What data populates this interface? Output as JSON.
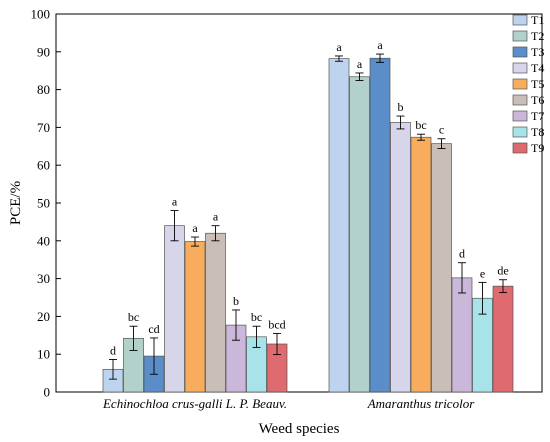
{
  "chart_data": {
    "type": "bar",
    "title": "",
    "xlabel": "Weed species",
    "ylabel": "PCE/%",
    "ylim": [
      0,
      100
    ],
    "yticks": [
      0,
      10,
      20,
      30,
      40,
      50,
      60,
      70,
      80,
      90,
      100
    ],
    "categories": [
      "Echinochloa crus-galli L. P. Beauv.",
      "Amaranthus tricolor"
    ],
    "legend_position": "top-right",
    "grid": false,
    "series": [
      {
        "name": "T1",
        "color": "#bdd3ee",
        "values": [
          6.0,
          88.2
        ],
        "errors": [
          2.6,
          0.7
        ],
        "labels": [
          "d",
          "a"
        ]
      },
      {
        "name": "T2",
        "color": "#b3d1cb",
        "values": [
          14.2,
          83.4
        ],
        "errors": [
          3.2,
          1.0
        ],
        "labels": [
          "bc",
          "a"
        ]
      },
      {
        "name": "T3",
        "color": "#5b8dc8",
        "values": [
          9.5,
          88.3
        ],
        "errors": [
          4.8,
          1.1
        ],
        "labels": [
          "cd",
          "a"
        ]
      },
      {
        "name": "T4",
        "color": "#d6d5ea",
        "values": [
          44.0,
          71.3
        ],
        "errors": [
          4.0,
          1.7
        ],
        "labels": [
          "a",
          "b"
        ]
      },
      {
        "name": "T5",
        "color": "#f8ad5e",
        "values": [
          39.8,
          67.4
        ],
        "errors": [
          1.2,
          0.8
        ],
        "labels": [
          "a",
          "bc"
        ]
      },
      {
        "name": "T6",
        "color": "#c9beb8",
        "values": [
          42.0,
          65.7
        ],
        "errors": [
          2.0,
          1.3
        ],
        "labels": [
          "a",
          "c"
        ]
      },
      {
        "name": "T7",
        "color": "#cbb7da",
        "values": [
          17.7,
          30.2
        ],
        "errors": [
          4.0,
          4.0
        ],
        "labels": [
          "b",
          "d"
        ]
      },
      {
        "name": "T8",
        "color": "#a9e3ea",
        "values": [
          14.6,
          24.8
        ],
        "errors": [
          2.8,
          4.2
        ],
        "labels": [
          "bc",
          "e"
        ]
      },
      {
        "name": "T9",
        "color": "#dd6b70",
        "values": [
          12.7,
          28.0
        ],
        "errors": [
          2.8,
          1.7
        ],
        "labels": [
          "bcd",
          "de"
        ]
      }
    ]
  }
}
